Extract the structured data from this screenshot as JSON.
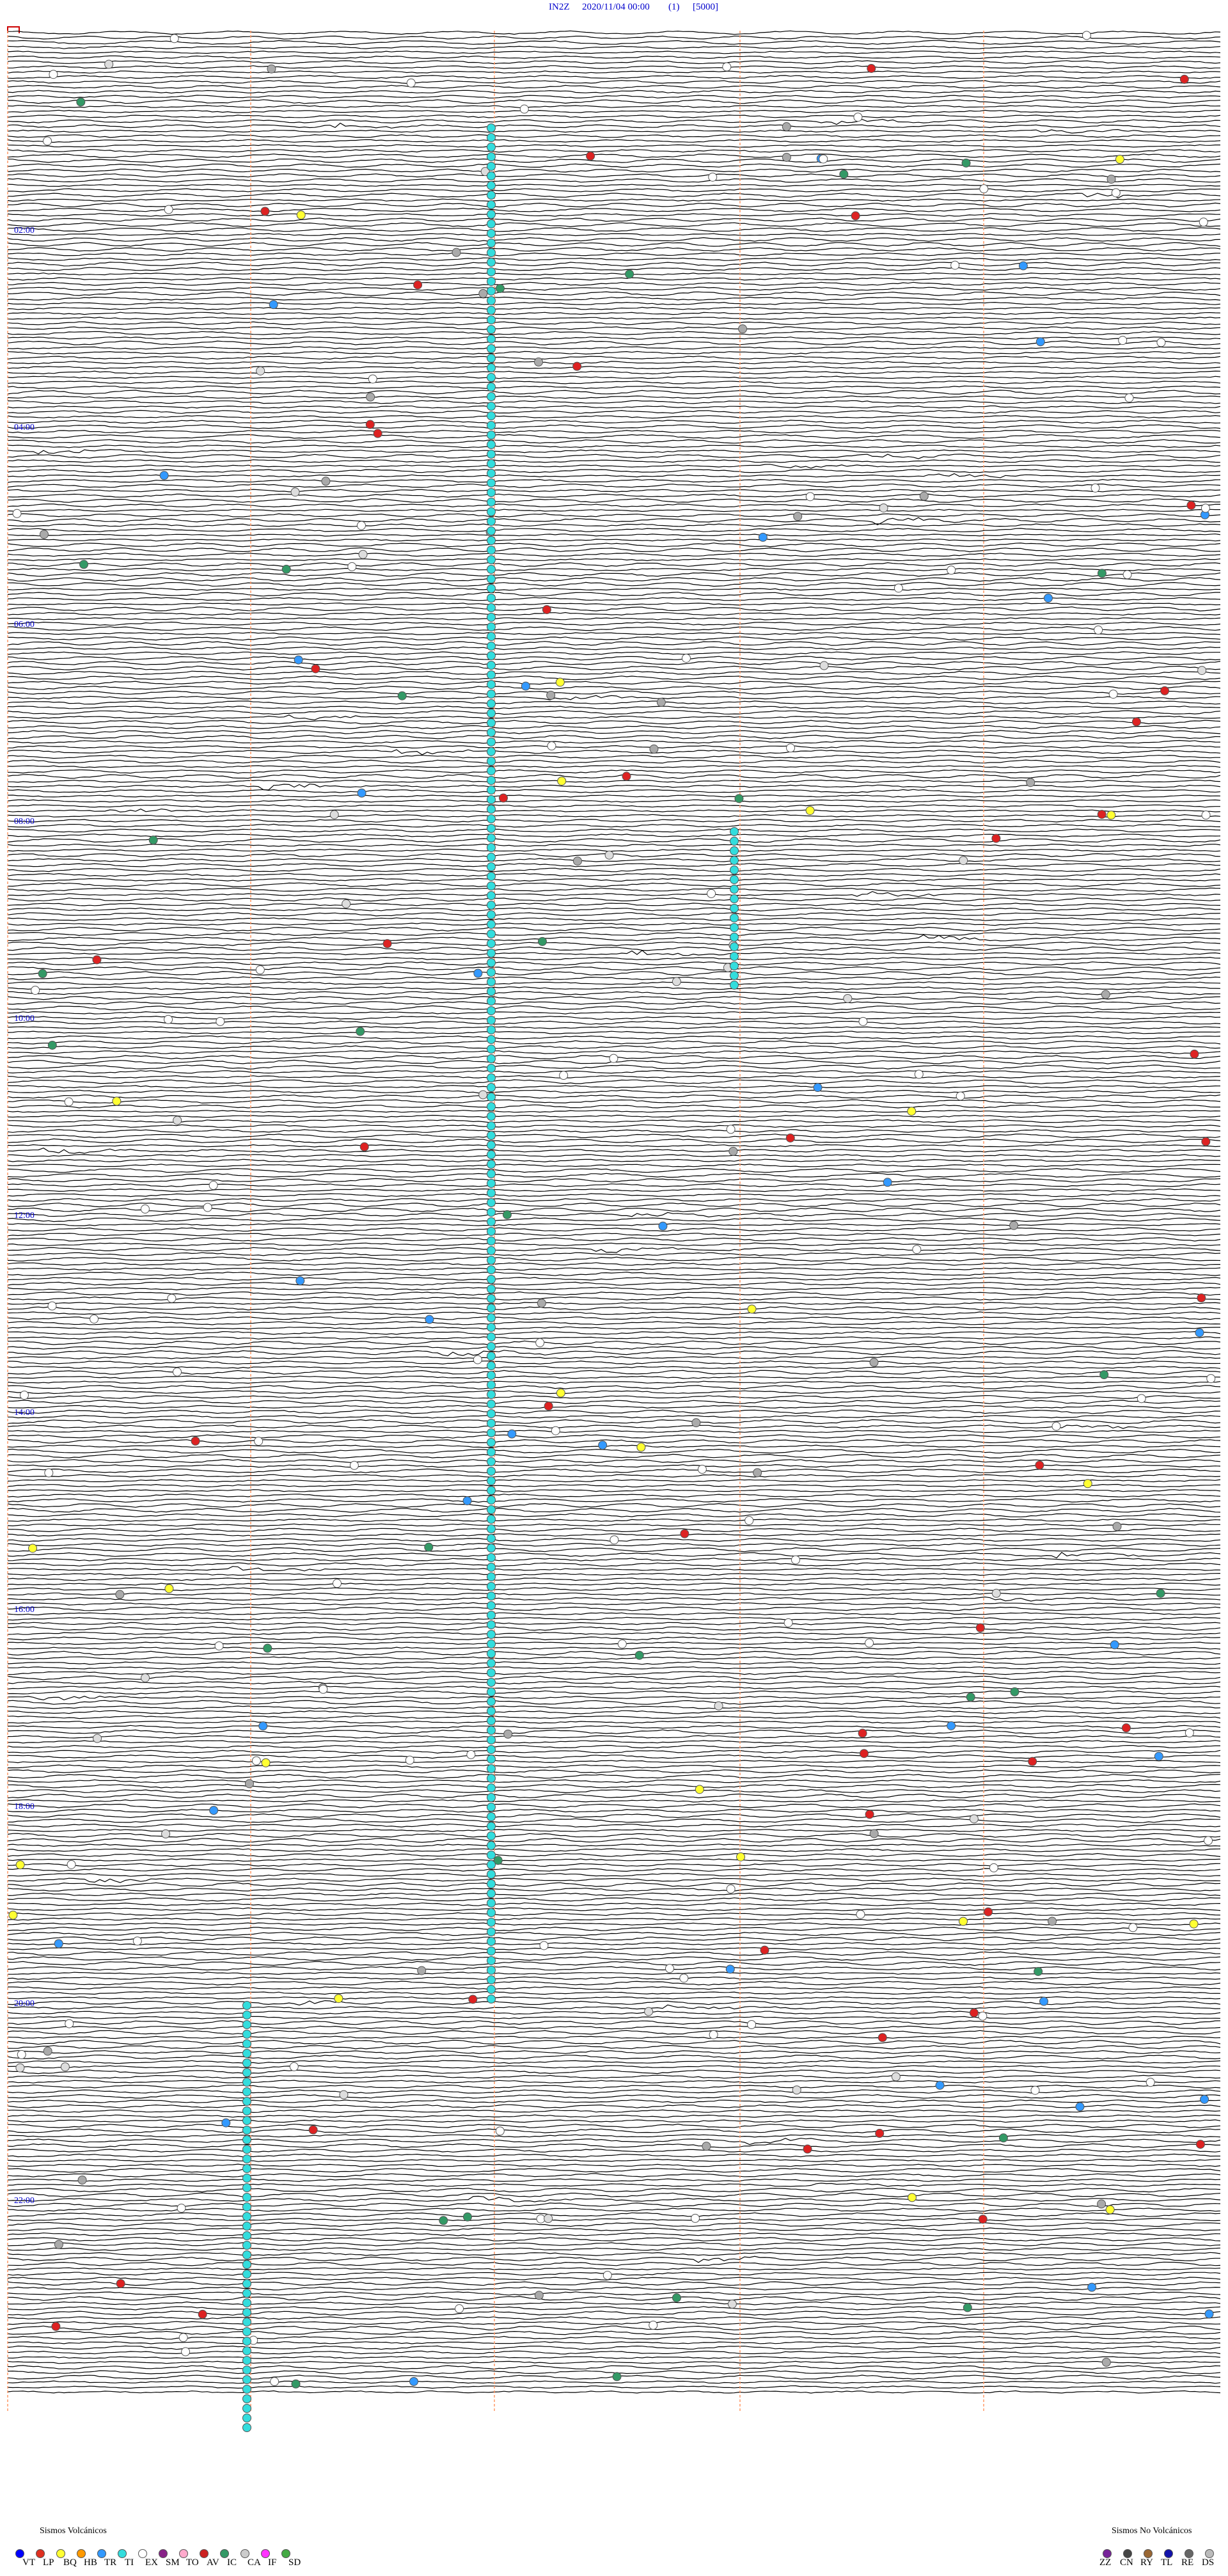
{
  "header": {
    "station": "IN2Z",
    "datetime": "2020/11/04 00:00",
    "channel": "(1)",
    "scale": "[5000]"
  },
  "hour_labels": [
    "02:00",
    "04:00",
    "06:00",
    "08:00",
    "10:00",
    "12:00",
    "14:00",
    "16:00",
    "18:00",
    "20:00",
    "22:00"
  ],
  "legend_volcanic": {
    "title": "Sismos Volcánicos",
    "items": [
      {
        "code": "VT",
        "color": "#0000ff"
      },
      {
        "code": "LP",
        "color": "#e03020"
      },
      {
        "code": "BQ",
        "color": "#ffff33"
      },
      {
        "code": "HB",
        "color": "#ff9900"
      },
      {
        "code": "TR",
        "color": "#3399ff"
      },
      {
        "code": "TI",
        "color": "#33dddd"
      },
      {
        "code": "EX",
        "color": "#ffffff"
      },
      {
        "code": "SM",
        "color": "#882288"
      },
      {
        "code": "TO",
        "color": "#ffaacc"
      },
      {
        "code": "AV",
        "color": "#cc2222"
      },
      {
        "code": "IC",
        "color": "#339966"
      },
      {
        "code": "CA",
        "color": "#cccccc"
      },
      {
        "code": "IF",
        "color": "#ff33ff"
      },
      {
        "code": "SD",
        "color": "#44aa44"
      }
    ]
  },
  "legend_nonvolcanic": {
    "title": "Sismos No Volcánicos",
    "items": [
      {
        "code": "ZZ",
        "color": "#772299"
      },
      {
        "code": "CN",
        "color": "#444444"
      },
      {
        "code": "RY",
        "color": "#996633"
      },
      {
        "code": "TL",
        "color": "#1111aa"
      },
      {
        "code": "RE",
        "color": "#666666"
      },
      {
        "code": "DS",
        "color": "#bbbbbb"
      }
    ]
  }
}
